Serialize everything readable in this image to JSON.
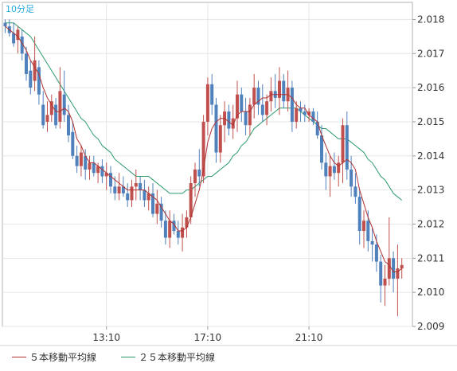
{
  "chart_data": {
    "type": "candlestick",
    "timeframe_label": "10分足",
    "y_ticks": [
      "2.018",
      "2.017",
      "2.016",
      "2.015",
      "2.014",
      "2.013",
      "2.012",
      "2.011",
      "2.010",
      "2.009"
    ],
    "ylim": [
      2.009,
      2.0185
    ],
    "x_ticks": [
      "13:10",
      "17:10",
      "21:10"
    ],
    "x_tick_index": [
      24,
      48,
      72
    ],
    "grid": true,
    "colors": {
      "up": "#c0504d",
      "down": "#4f81bd",
      "ma5": "#b03030",
      "ma25": "#2a9a6a",
      "label": "#29a9df"
    },
    "legend": [
      {
        "name": "５本移動平均線",
        "color": "#b03030"
      },
      {
        "name": "２５本移動平均線",
        "color": "#2a9a6a"
      }
    ],
    "candles": [
      [
        2.0179,
        2.018,
        2.0176,
        2.0178
      ],
      [
        2.0178,
        2.018,
        2.0175,
        2.0176
      ],
      [
        2.0176,
        2.0179,
        2.0172,
        2.0173
      ],
      [
        2.0174,
        2.0178,
        2.017,
        2.0177
      ],
      [
        2.0175,
        2.0177,
        2.0168,
        2.017
      ],
      [
        2.017,
        2.0172,
        2.0162,
        2.0164
      ],
      [
        2.0165,
        2.0168,
        2.0158,
        2.016
      ],
      [
        2.0162,
        2.0175,
        2.0159,
        2.0168
      ],
      [
        2.0166,
        2.0168,
        2.0155,
        2.0158
      ],
      [
        2.0155,
        2.0159,
        2.0148,
        2.0149
      ],
      [
        2.015,
        2.0156,
        2.0147,
        2.0152
      ],
      [
        2.0152,
        2.0158,
        2.015,
        2.0156
      ],
      [
        2.0155,
        2.0157,
        2.0148,
        2.0149
      ],
      [
        2.015,
        2.0166,
        2.0148,
        2.0159
      ],
      [
        2.0158,
        2.0165,
        2.015,
        2.0152
      ],
      [
        2.0152,
        2.0155,
        2.0144,
        2.0146
      ],
      [
        2.0147,
        2.015,
        2.0139,
        2.014
      ],
      [
        2.014,
        2.0143,
        2.0135,
        2.0137
      ],
      [
        2.0137,
        2.0143,
        2.0134,
        2.0141
      ],
      [
        2.014,
        2.0142,
        2.0133,
        2.0136
      ],
      [
        2.0136,
        2.014,
        2.0133,
        2.0138
      ],
      [
        2.0138,
        2.014,
        2.0134,
        2.0135
      ],
      [
        2.0135,
        2.0138,
        2.0132,
        2.0137
      ],
      [
        2.0137,
        2.0139,
        2.0132,
        2.0134
      ],
      [
        2.0134,
        2.0138,
        2.013,
        2.0135
      ],
      [
        2.0135,
        2.0137,
        2.0129,
        2.0131
      ],
      [
        2.0131,
        2.0134,
        2.0127,
        2.0129
      ],
      [
        2.0129,
        2.0135,
        2.0127,
        2.0131
      ],
      [
        2.0131,
        2.0134,
        2.0128,
        2.0129
      ],
      [
        2.0129,
        2.0132,
        2.0125,
        2.0127
      ],
      [
        2.0127,
        2.0133,
        2.0125,
        2.0131
      ],
      [
        2.0131,
        2.0136,
        2.0127,
        2.0132
      ],
      [
        2.0132,
        2.0134,
        2.0127,
        2.013
      ],
      [
        2.013,
        2.0133,
        2.0125,
        2.0127
      ],
      [
        2.0127,
        2.0131,
        2.0124,
        2.0129
      ],
      [
        2.0129,
        2.0132,
        2.0122,
        2.0123
      ],
      [
        2.0123,
        2.013,
        2.012,
        2.0126
      ],
      [
        2.0126,
        2.0128,
        2.0119,
        2.0121
      ],
      [
        2.0121,
        2.0124,
        2.0114,
        2.0116
      ],
      [
        2.0116,
        2.0124,
        2.0113,
        2.0121
      ],
      [
        2.0121,
        2.0123,
        2.0117,
        2.0118
      ],
      [
        2.0118,
        2.0121,
        2.0114,
        2.0116
      ],
      [
        2.0116,
        2.0123,
        2.0112,
        2.0119
      ],
      [
        2.0119,
        2.0124,
        2.0116,
        2.0122
      ],
      [
        2.0122,
        2.0134,
        2.012,
        2.0132
      ],
      [
        2.0132,
        2.0138,
        2.0128,
        2.0136
      ],
      [
        2.0136,
        2.0142,
        2.0131,
        2.0134
      ],
      [
        2.0134,
        2.0152,
        2.0132,
        2.015
      ],
      [
        2.015,
        2.0163,
        2.0146,
        2.0161
      ],
      [
        2.0161,
        2.0164,
        2.0152,
        2.0155
      ],
      [
        2.0155,
        2.0157,
        2.0138,
        2.0141
      ],
      [
        2.0141,
        2.0152,
        2.0138,
        2.0149
      ],
      [
        2.0149,
        2.0156,
        2.0144,
        2.0153
      ],
      [
        2.0153,
        2.0155,
        2.0146,
        2.0148
      ],
      [
        2.0148,
        2.0155,
        2.0145,
        2.0151
      ],
      [
        2.0151,
        2.0162,
        2.0147,
        2.0158
      ],
      [
        2.0158,
        2.016,
        2.015,
        2.0153
      ],
      [
        2.0153,
        2.0157,
        2.0146,
        2.0149
      ],
      [
        2.0149,
        2.0157,
        2.0146,
        2.0155
      ],
      [
        2.0155,
        2.0164,
        2.0151,
        2.016
      ],
      [
        2.016,
        2.0162,
        2.0152,
        2.0155
      ],
      [
        2.0155,
        2.0161,
        2.015,
        2.0152
      ],
      [
        2.0152,
        2.0158,
        2.0149,
        2.0156
      ],
      [
        2.0156,
        2.0163,
        2.0153,
        2.0159
      ],
      [
        2.0159,
        2.0164,
        2.0154,
        2.0157
      ],
      [
        2.0157,
        2.0166,
        2.0152,
        2.0162
      ],
      [
        2.0162,
        2.0164,
        2.0154,
        2.0156
      ],
      [
        2.0156,
        2.0165,
        2.0153,
        2.016
      ],
      [
        2.016,
        2.0162,
        2.0147,
        2.015
      ],
      [
        2.015,
        2.0156,
        2.0148,
        2.0154
      ],
      [
        2.0154,
        2.0156,
        2.015,
        2.0153
      ],
      [
        2.0153,
        2.0155,
        2.015,
        2.0152
      ],
      [
        2.0152,
        2.0154,
        2.015,
        2.0153
      ],
      [
        2.0153,
        2.0154,
        2.0149,
        2.015
      ],
      [
        2.015,
        2.0153,
        2.0145,
        2.0146
      ],
      [
        2.0146,
        2.0149,
        2.0136,
        2.0138
      ],
      [
        2.0138,
        2.0141,
        2.013,
        2.0134
      ],
      [
        2.0134,
        2.014,
        2.0128,
        2.0137
      ],
      [
        2.0137,
        2.0141,
        2.0133,
        2.0135
      ],
      [
        2.0135,
        2.014,
        2.0131,
        2.0138
      ],
      [
        2.0138,
        2.0151,
        2.0132,
        2.0149
      ],
      [
        2.0149,
        2.0153,
        2.0133,
        2.0136
      ],
      [
        2.0136,
        2.014,
        2.0128,
        2.0131
      ],
      [
        2.0131,
        2.0135,
        2.0126,
        2.0128
      ],
      [
        2.0128,
        2.013,
        2.0114,
        2.0118
      ],
      [
        2.0118,
        2.0124,
        2.0113,
        2.0121
      ],
      [
        2.0121,
        2.0124,
        2.0112,
        2.0115
      ],
      [
        2.0115,
        2.0119,
        2.0109,
        2.0114
      ],
      [
        2.0114,
        2.0117,
        2.0106,
        2.0109
      ],
      [
        2.0109,
        2.0111,
        2.0097,
        2.0102
      ],
      [
        2.0102,
        2.0108,
        2.0096,
        2.0104
      ],
      [
        2.0104,
        2.0122,
        2.0102,
        2.011
      ],
      [
        2.011,
        2.0112,
        2.01,
        2.0104
      ],
      [
        2.0104,
        2.0114,
        2.0093,
        2.0107
      ],
      [
        2.0107,
        2.011,
        2.0104,
        2.0108
      ]
    ],
    "ma5": [
      2.0178,
      2.0177,
      2.0176,
      2.0175,
      2.0173,
      2.0171,
      2.0168,
      2.0166,
      2.0164,
      2.016,
      2.0157,
      2.0155,
      2.0153,
      2.0153,
      2.0154,
      2.0153,
      2.015,
      2.0145,
      2.0143,
      2.014,
      2.0138,
      2.0138,
      2.0137,
      2.0136,
      2.0135,
      2.0134,
      2.0133,
      2.0132,
      2.0131,
      2.013,
      2.013,
      2.013,
      2.013,
      2.013,
      2.0129,
      2.0128,
      2.0127,
      2.0125,
      2.0123,
      2.0121,
      2.012,
      2.0118,
      2.0118,
      2.0119,
      2.0122,
      2.0126,
      2.013,
      2.0136,
      2.0144,
      2.0148,
      2.015,
      2.0151,
      2.0151,
      2.015,
      2.0149,
      2.0152,
      2.0153,
      2.0153,
      2.0153,
      2.0155,
      2.0156,
      2.0157,
      2.0157,
      2.0158,
      2.0158,
      2.0158,
      2.0158,
      2.0158,
      2.0157,
      2.0155,
      2.0154,
      2.0154,
      2.0152,
      2.0151,
      2.015,
      2.0146,
      2.0143,
      2.014,
      2.0138,
      2.0137,
      2.0138,
      2.0139,
      2.0138,
      2.0136,
      2.013,
      2.0126,
      2.0122,
      2.0119,
      2.0115,
      2.0112,
      2.0109,
      2.0108,
      2.0106,
      2.0106,
      2.0107
    ],
    "ma25": [
      2.0179,
      2.0179,
      2.0179,
      2.0178,
      2.0177,
      2.0176,
      2.0175,
      2.0173,
      2.0171,
      2.0169,
      2.0167,
      2.0165,
      2.0163,
      2.0161,
      2.0159,
      2.0157,
      2.0155,
      2.0153,
      2.0151,
      2.015,
      2.0148,
      2.0146,
      2.0145,
      2.0143,
      2.0142,
      2.0141,
      2.0139,
      2.0138,
      2.0137,
      2.0136,
      2.0135,
      2.0134,
      2.0134,
      2.0134,
      2.0134,
      2.0133,
      2.0132,
      2.0131,
      2.013,
      2.0129,
      2.0129,
      2.0129,
      2.0129,
      2.013,
      2.013,
      2.0131,
      2.0132,
      2.0133,
      2.0134,
      2.0134,
      2.0135,
      2.0136,
      2.0137,
      2.0138,
      2.014,
      2.0141,
      2.0143,
      2.0144,
      2.0146,
      2.0148,
      2.0149,
      2.015,
      2.0151,
      2.0152,
      2.0153,
      2.0154,
      2.0154,
      2.0154,
      2.0154,
      2.0154,
      2.0153,
      2.0152,
      2.0151,
      2.015,
      2.0149,
      2.0148,
      2.0148,
      2.0147,
      2.0146,
      2.0145,
      2.0145,
      2.0145,
      2.0144,
      2.0143,
      2.0142,
      2.0141,
      2.0139,
      2.0138,
      2.0136,
      2.0134,
      2.0133,
      2.0131,
      2.0129,
      2.0128,
      2.0127
    ]
  }
}
